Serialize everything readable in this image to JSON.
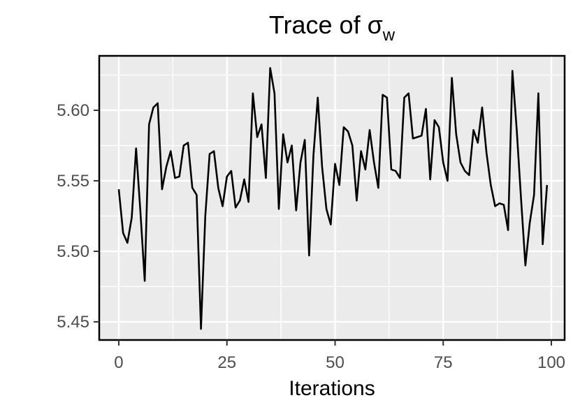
{
  "chart_data": {
    "type": "line",
    "title": "Trace of σ",
    "title_subscript": "w",
    "x_label": "Iterations",
    "x": [
      0,
      1,
      2,
      3,
      4,
      5,
      6,
      7,
      8,
      9,
      10,
      11,
      12,
      13,
      14,
      15,
      16,
      17,
      18,
      19,
      20,
      21,
      22,
      23,
      24,
      25,
      26,
      27,
      28,
      29,
      30,
      31,
      32,
      33,
      34,
      35,
      36,
      37,
      38,
      39,
      40,
      41,
      42,
      43,
      44,
      45,
      46,
      47,
      48,
      49,
      50,
      51,
      52,
      53,
      54,
      55,
      56,
      57,
      58,
      59,
      60,
      61,
      62,
      63,
      64,
      65,
      66,
      67,
      68,
      69,
      70,
      71,
      72,
      73,
      74,
      75,
      76,
      77,
      78,
      79,
      80,
      81,
      82,
      83,
      84,
      85,
      86,
      87,
      88,
      89,
      90,
      91,
      92,
      93,
      94,
      95,
      96,
      97,
      98,
      99
    ],
    "values": [
      5.544,
      5.513,
      5.506,
      5.524,
      5.573,
      5.528,
      5.479,
      5.59,
      5.602,
      5.605,
      5.544,
      5.56,
      5.571,
      5.552,
      5.553,
      5.575,
      5.577,
      5.545,
      5.54,
      5.445,
      5.525,
      5.569,
      5.571,
      5.545,
      5.532,
      5.553,
      5.557,
      5.531,
      5.536,
      5.551,
      5.535,
      5.612,
      5.581,
      5.59,
      5.552,
      5.63,
      5.612,
      5.53,
      5.583,
      5.563,
      5.575,
      5.529,
      5.563,
      5.579,
      5.497,
      5.568,
      5.609,
      5.56,
      5.53,
      5.519,
      5.562,
      5.547,
      5.588,
      5.585,
      5.575,
      5.536,
      5.571,
      5.558,
      5.586,
      5.563,
      5.545,
      5.611,
      5.609,
      5.558,
      5.557,
      5.552,
      5.609,
      5.612,
      5.58,
      5.581,
      5.582,
      5.601,
      5.551,
      5.593,
      5.588,
      5.563,
      5.55,
      5.623,
      5.583,
      5.563,
      5.557,
      5.554,
      5.586,
      5.577,
      5.602,
      5.57,
      5.547,
      5.532,
      5.534,
      5.533,
      5.515,
      5.628,
      5.586,
      5.537,
      5.49,
      5.52,
      5.54,
      5.612,
      5.505,
      5.547
    ],
    "color": "#000000",
    "xlim": [
      -4.52,
      103.07
    ],
    "ylim": [
      5.4371,
      5.6386
    ],
    "xticks": [
      0,
      25,
      50,
      75,
      100
    ],
    "yticks": [
      5.45,
      {
        "value": 5.5,
        "label": "5.50"
      },
      5.55,
      {
        "value": 5.6,
        "label": "5.60"
      }
    ],
    "x_minor_ticks": [
      12.5,
      37.5,
      62.5,
      87.5
    ],
    "y_minor_ticks": [
      5.475,
      5.525,
      5.575,
      5.625
    ],
    "grid": true
  }
}
